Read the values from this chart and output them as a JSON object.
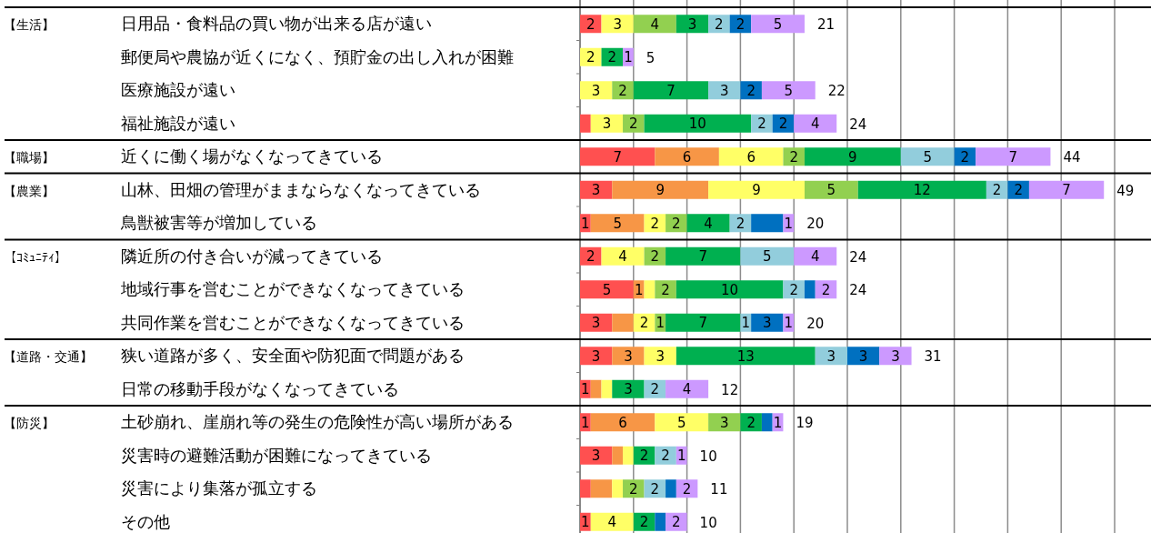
{
  "chart_data": {
    "type": "bar",
    "orientation": "horizontal",
    "stacked": true,
    "categories": [
      "【生活】日用品・食料品の買い物が出来る店が遠い",
      "郵便局や農協が近くになく、預貯金の出し入れが困難",
      "医療施設が遠い",
      "福祉施設が遠い",
      "【職場】近くに働く場がなくなってきている",
      "【農業】山林、田畑の管理がままならなくなってきている",
      "鳥獣被害等が増加している",
      "【ｺﾐｭﾆﾃｨ】隣近所の付き合いが減ってきている",
      "地域行事を営むことができなくなってきている",
      "共同作業を営むことができなくなってきている",
      "【道路・交通】狭い道路が多く、安全面や防犯面で問題がある",
      "日常の移動手段がなくなってきている",
      "【防災】土砂崩れ、崖崩れ等の発生の危険性が高い場所がある",
      "災害時の避難活動が困難になってきている",
      "災害により集落が孤立する",
      "その他"
    ],
    "series": [
      {
        "color": "#ff5050",
        "values": [
          2,
          0,
          0,
          1,
          7,
          3,
          1,
          2,
          5,
          3,
          3,
          1,
          1,
          3,
          1,
          1
        ],
        "value_labels": [
          "2",
          null,
          null,
          null,
          "7",
          "3",
          "1",
          "2",
          "5",
          "3",
          "3",
          "1",
          "1",
          "3",
          null,
          "1"
        ]
      },
      {
        "color": "#f79646",
        "values": [
          0,
          0,
          0,
          0,
          6,
          9,
          5,
          0,
          1,
          2,
          3,
          1,
          6,
          1,
          2,
          0
        ],
        "value_labels": [
          null,
          null,
          null,
          null,
          "6",
          "9",
          "5",
          null,
          "1",
          null,
          "3",
          null,
          "6",
          null,
          null,
          null
        ]
      },
      {
        "color": "#ffff66",
        "values": [
          3,
          2,
          3,
          3,
          6,
          9,
          2,
          4,
          1,
          2,
          3,
          1,
          5,
          1,
          1,
          4
        ],
        "value_labels": [
          "3",
          "2",
          "3",
          "3",
          "6",
          "9",
          "2",
          "4",
          null,
          "2",
          "3",
          null,
          "5",
          null,
          null,
          "4"
        ]
      },
      {
        "color": "#92d050",
        "values": [
          4,
          0,
          2,
          2,
          2,
          5,
          2,
          2,
          2,
          1,
          0,
          0,
          3,
          0,
          2,
          0
        ],
        "value_labels": [
          "4",
          null,
          "2",
          "2",
          "2",
          "5",
          "2",
          "2",
          "2",
          "1",
          null,
          null,
          "3",
          null,
          "2",
          null
        ]
      },
      {
        "color": "#00b050",
        "values": [
          3,
          2,
          7,
          10,
          9,
          12,
          4,
          7,
          10,
          7,
          13,
          3,
          2,
          2,
          0,
          2
        ],
        "value_labels": [
          "3",
          "2",
          "7",
          "10",
          "9",
          "12",
          "4",
          "7",
          "10",
          "7",
          "13",
          "3",
          "2",
          "2",
          null,
          "2"
        ]
      },
      {
        "color": "#92cddc",
        "values": [
          2,
          0,
          3,
          2,
          5,
          2,
          2,
          5,
          2,
          1,
          3,
          2,
          0,
          2,
          2,
          0
        ],
        "value_labels": [
          "2",
          null,
          "3",
          "2",
          "5",
          "2",
          "2",
          "5",
          "2",
          "1",
          "3",
          "2",
          null,
          "2",
          "2",
          null
        ]
      },
      {
        "color": "#0070c0",
        "values": [
          2,
          0,
          2,
          2,
          2,
          2,
          3,
          0,
          1,
          3,
          3,
          0,
          1,
          0,
          1,
          1
        ],
        "value_labels": [
          "2",
          null,
          "2",
          "2",
          "2",
          "2",
          null,
          null,
          null,
          "3",
          "3",
          null,
          null,
          null,
          null,
          null
        ]
      },
      {
        "color": "#cc99ff",
        "values": [
          5,
          1,
          5,
          4,
          7,
          7,
          1,
          4,
          2,
          1,
          3,
          4,
          1,
          1,
          2,
          2
        ],
        "value_labels": [
          "5",
          "1",
          "5",
          "4",
          "7",
          "7",
          "1",
          "4",
          "2",
          "1",
          "3",
          "4",
          "1",
          "1",
          "2",
          "2"
        ]
      }
    ],
    "totals": [
      "21",
      "5",
      "22",
      "24",
      "44",
      "49",
      "20",
      "24",
      "24",
      "20",
      "31",
      "12",
      "19",
      "10",
      "11",
      "10"
    ],
    "xlim": [
      0,
      50
    ],
    "xticks": [
      {
        "value": 0,
        "label": null
      },
      {
        "value": 5,
        "label": null
      },
      {
        "value": 10,
        "label": null
      },
      {
        "value": 15,
        "label": null
      },
      {
        "value": 20,
        "label": null
      },
      {
        "value": 25,
        "label": null
      },
      {
        "value": 30,
        "label": null
      },
      {
        "value": 35,
        "label": null
      },
      {
        "value": 40,
        "label": null
      },
      {
        "value": 45,
        "label": null
      },
      {
        "value": 50,
        "label": null
      }
    ],
    "grid": "x",
    "tick_labels": "y"
  }
}
